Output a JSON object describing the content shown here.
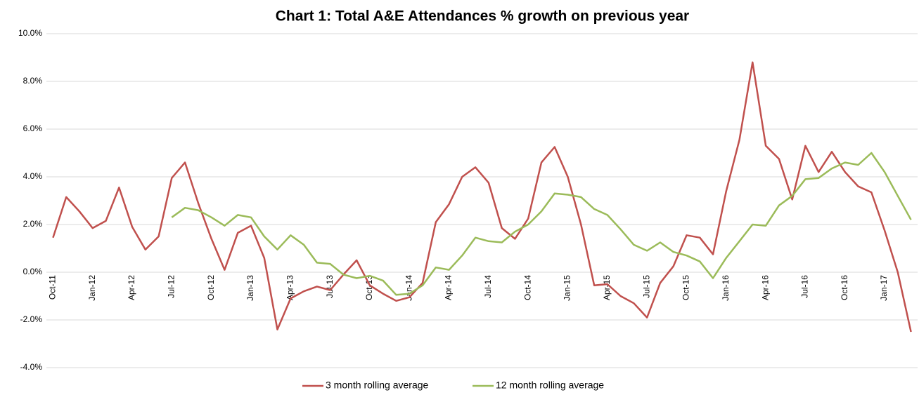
{
  "chart_data": {
    "type": "line",
    "title": "Chart 1: Total A&E Attendances % growth on previous year",
    "categories": [
      "Oct-11",
      null,
      null,
      "Jan-12",
      null,
      null,
      "Apr-12",
      null,
      null,
      "Jul-12",
      null,
      null,
      "Oct-12",
      null,
      null,
      "Jan-13",
      null,
      null,
      "Apr-13",
      null,
      null,
      "Jul-13",
      null,
      null,
      "Oct-13",
      null,
      null,
      "Jan-14",
      null,
      null,
      "Apr-14",
      null,
      null,
      "Jul-14",
      null,
      null,
      "Oct-14",
      null,
      null,
      "Jan-15",
      null,
      null,
      "Apr-15",
      null,
      null,
      "Jul-15",
      null,
      null,
      "Oct-15",
      null,
      null,
      "Jan-16",
      null,
      null,
      "Apr-16",
      null,
      null,
      "Jul-16",
      null,
      null,
      "Oct-16",
      null,
      null,
      "Jan-17",
      null,
      null
    ],
    "series": [
      {
        "name": "3 month rolling average",
        "color": "#c0504d",
        "values": [
          1.45,
          3.15,
          2.55,
          1.85,
          2.15,
          3.55,
          1.9,
          0.95,
          1.5,
          3.95,
          4.6,
          2.9,
          1.4,
          0.1,
          1.65,
          1.95,
          0.6,
          -2.4,
          -1.1,
          -0.8,
          -0.6,
          -0.75,
          -0.1,
          0.5,
          -0.55,
          -0.9,
          -1.2,
          -1.05,
          -0.45,
          2.1,
          2.85,
          4.0,
          4.4,
          3.75,
          1.85,
          1.4,
          2.25,
          4.6,
          5.25,
          4.0,
          2.0,
          -0.55,
          -0.5,
          -1.0,
          -1.3,
          -1.9,
          -0.45,
          0.25,
          1.55,
          1.45,
          0.75,
          3.4,
          5.55,
          8.8,
          5.3,
          4.75,
          3.05,
          5.3,
          4.2,
          5.05,
          4.2,
          3.6,
          3.35,
          1.75,
          0.0,
          -2.5
        ]
      },
      {
        "name": "12 month rolling average",
        "color": "#9bbb59",
        "values": [
          null,
          null,
          null,
          null,
          null,
          null,
          null,
          null,
          null,
          2.3,
          2.7,
          2.6,
          2.3,
          1.95,
          2.4,
          2.3,
          1.5,
          0.95,
          1.55,
          1.15,
          0.4,
          0.35,
          -0.1,
          -0.25,
          -0.15,
          -0.35,
          -0.95,
          -0.9,
          -0.55,
          0.2,
          0.1,
          0.7,
          1.45,
          1.3,
          1.25,
          1.7,
          2.0,
          2.55,
          3.3,
          3.25,
          3.15,
          2.65,
          2.4,
          1.8,
          1.15,
          0.9,
          1.25,
          0.85,
          0.7,
          0.45,
          -0.25,
          0.6,
          1.3,
          2.0,
          1.95,
          2.8,
          3.2,
          3.9,
          3.95,
          4.35,
          4.6,
          4.5,
          5.0,
          4.2,
          3.2,
          2.2
        ]
      }
    ],
    "ylim": [
      -4,
      10
    ],
    "yticks": [
      {
        "value": -4,
        "label": "-4.0%"
      },
      {
        "value": -2,
        "label": "-2.0%"
      },
      {
        "value": 0,
        "label": "0.0%"
      },
      {
        "value": 2,
        "label": "2.0%"
      },
      {
        "value": 4,
        "label": "4.0%"
      },
      {
        "value": 6,
        "label": "6.0%"
      },
      {
        "value": 8,
        "label": "8.0%"
      },
      {
        "value": 10,
        "label": "10.0%"
      }
    ],
    "grid": true,
    "legend": "bottom"
  }
}
